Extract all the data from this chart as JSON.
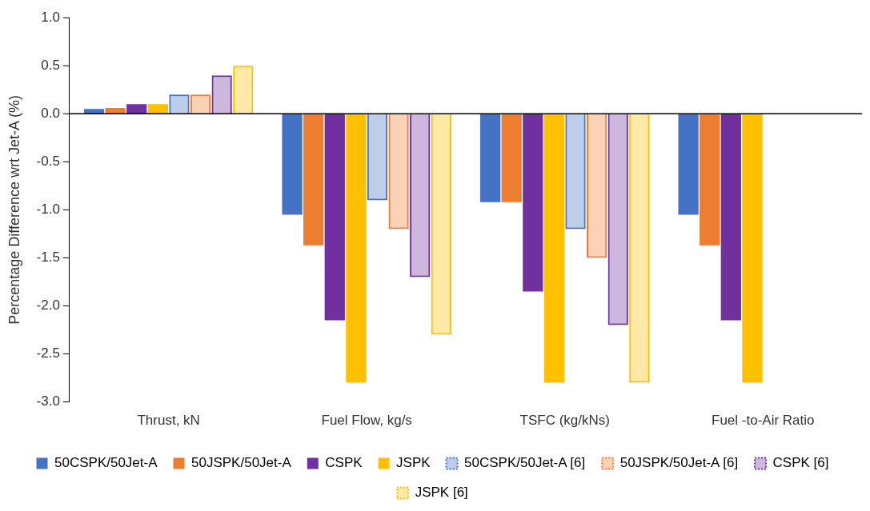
{
  "chart_data": {
    "type": "bar",
    "ylabel": "Percentage Difference wrt Jet-A (%)",
    "categories": [
      "Thrust, kN",
      "Fuel Flow, kg/s",
      "TSFC (kg/kNs)",
      "Fuel -to-Air Ratio"
    ],
    "series": [
      {
        "name": "50CSPK/50Jet-A",
        "color": "#4472c4",
        "values": [
          0.05,
          -1.05,
          -0.92,
          -1.05
        ]
      },
      {
        "name": "50JSPK/50Jet-A",
        "color": "#ed7d31",
        "values": [
          0.06,
          -1.37,
          -0.92,
          -1.37
        ]
      },
      {
        "name": "CSPK",
        "color": "#7030a0",
        "values": [
          0.1,
          -2.15,
          -1.85,
          -2.15
        ]
      },
      {
        "name": "JSPK",
        "color": "#ffc000",
        "values": [
          0.1,
          -2.8,
          -2.8,
          -2.8
        ]
      },
      {
        "name": "50CSPK/50Jet-A [6]",
        "color": "#4472c4",
        "line_style": "dotted",
        "values": [
          0.2,
          -0.9,
          -1.2,
          null
        ]
      },
      {
        "name": "50JSPK/50Jet-A [6]",
        "color": "#ed7d31",
        "line_style": "dotted",
        "values": [
          0.2,
          -1.2,
          -1.5,
          null
        ]
      },
      {
        "name": "CSPK [6]",
        "color": "#7030a0",
        "line_style": "dotted",
        "values": [
          0.4,
          -1.7,
          -2.2,
          null
        ]
      },
      {
        "name": "JSPK [6]",
        "color": "#ffc000",
        "line_style": "dotted",
        "values": [
          0.5,
          -2.3,
          -2.8,
          null
        ]
      }
    ],
    "ylim": [
      -3,
      1
    ],
    "yticks": [
      {
        "value": -3,
        "label": "-3.0"
      },
      {
        "value": -2.5,
        "label": "-2.5"
      },
      {
        "value": -2,
        "label": "-2.0"
      },
      {
        "value": -1.5,
        "label": "-1.5"
      },
      {
        "value": -1,
        "label": "-1.0"
      },
      {
        "value": -0.5,
        "label": "-0.5"
      },
      {
        "value": 0,
        "label": "0.0"
      },
      {
        "value": 0.5,
        "label": "0.5"
      },
      {
        "value": 1,
        "label": "1.0"
      }
    ],
    "ref_lines": [
      {
        "axis": "y",
        "value": 0,
        "color": "#000000"
      }
    ],
    "grid": false,
    "legend": "bottom"
  }
}
